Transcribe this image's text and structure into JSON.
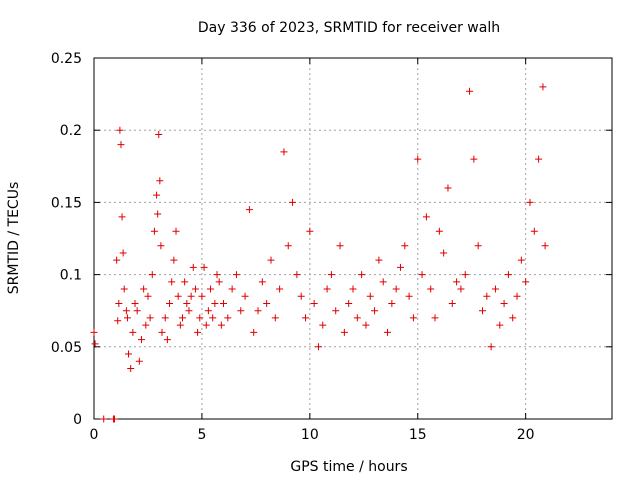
{
  "chart_data": {
    "type": "scatter",
    "title": "Day 336 of 2023, SRMTID for receiver walh",
    "xlabel": "GPS time / hours",
    "ylabel": "SRMTID / TECUs",
    "xlim": [
      0,
      24
    ],
    "ylim": [
      0,
      0.25
    ],
    "x_ticks": [
      0,
      5,
      10,
      15,
      20
    ],
    "y_ticks": [
      0,
      0.05,
      0.1,
      0.15,
      0.2,
      0.25
    ],
    "x_tick_labels": [
      "0",
      "5",
      "10",
      "15",
      "20"
    ],
    "y_tick_labels": [
      "0",
      "0.05",
      "0.1",
      "0.15",
      "0.2",
      "0.25"
    ],
    "grid": true,
    "marker": "+",
    "series": [
      {
        "name": "SRMTID",
        "color": "#e00000",
        "x": [
          0.0,
          0.05,
          0.45,
          0.9,
          0.95,
          1.05,
          1.1,
          1.15,
          1.2,
          1.25,
          1.3,
          1.35,
          1.4,
          1.5,
          1.55,
          1.6,
          1.7,
          1.8,
          1.9,
          2.0,
          2.1,
          2.2,
          2.3,
          2.4,
          2.5,
          2.6,
          2.7,
          2.8,
          2.9,
          2.95,
          3.0,
          3.05,
          3.1,
          3.15,
          3.3,
          3.4,
          3.5,
          3.6,
          3.7,
          3.8,
          3.9,
          4.0,
          4.1,
          4.2,
          4.3,
          4.4,
          4.5,
          4.6,
          4.7,
          4.8,
          4.9,
          5.0,
          5.1,
          5.2,
          5.3,
          5.4,
          5.5,
          5.6,
          5.7,
          5.8,
          5.9,
          6.0,
          6.2,
          6.4,
          6.6,
          6.8,
          7.0,
          7.2,
          7.4,
          7.6,
          7.8,
          8.0,
          8.2,
          8.4,
          8.6,
          8.8,
          9.0,
          9.2,
          9.4,
          9.6,
          9.8,
          10.0,
          10.2,
          10.4,
          10.6,
          10.8,
          11.0,
          11.2,
          11.4,
          11.6,
          11.8,
          12.0,
          12.2,
          12.4,
          12.6,
          12.8,
          13.0,
          13.2,
          13.4,
          13.6,
          13.8,
          14.0,
          14.2,
          14.4,
          14.6,
          14.8,
          15.0,
          15.2,
          15.4,
          15.6,
          15.8,
          16.0,
          16.2,
          16.4,
          16.6,
          16.8,
          17.0,
          17.2,
          17.4,
          17.6,
          17.8,
          18.0,
          18.2,
          18.4,
          18.6,
          18.8,
          19.0,
          19.2,
          19.4,
          19.6,
          19.8,
          20.0,
          20.2,
          20.4,
          20.6,
          20.8,
          20.9
        ],
        "y": [
          0.06,
          0.052,
          0.0,
          0.0,
          0.0,
          0.11,
          0.068,
          0.08,
          0.2,
          0.19,
          0.14,
          0.115,
          0.09,
          0.075,
          0.07,
          0.045,
          0.035,
          0.06,
          0.08,
          0.075,
          0.04,
          0.055,
          0.09,
          0.065,
          0.085,
          0.07,
          0.1,
          0.13,
          0.155,
          0.142,
          0.197,
          0.165,
          0.12,
          0.06,
          0.07,
          0.055,
          0.08,
          0.095,
          0.11,
          0.13,
          0.085,
          0.065,
          0.07,
          0.095,
          0.08,
          0.075,
          0.085,
          0.105,
          0.09,
          0.06,
          0.07,
          0.085,
          0.105,
          0.065,
          0.075,
          0.09,
          0.07,
          0.08,
          0.1,
          0.095,
          0.065,
          0.08,
          0.07,
          0.09,
          0.1,
          0.075,
          0.085,
          0.145,
          0.06,
          0.075,
          0.095,
          0.08,
          0.11,
          0.07,
          0.09,
          0.185,
          0.12,
          0.15,
          0.1,
          0.085,
          0.07,
          0.13,
          0.08,
          0.05,
          0.065,
          0.09,
          0.1,
          0.075,
          0.12,
          0.06,
          0.08,
          0.09,
          0.07,
          0.1,
          0.065,
          0.085,
          0.075,
          0.11,
          0.095,
          0.06,
          0.08,
          0.09,
          0.105,
          0.12,
          0.085,
          0.07,
          0.18,
          0.1,
          0.14,
          0.09,
          0.07,
          0.13,
          0.115,
          0.16,
          0.08,
          0.095,
          0.09,
          0.1,
          0.227,
          0.18,
          0.12,
          0.075,
          0.085,
          0.05,
          0.09,
          0.065,
          0.08,
          0.1,
          0.07,
          0.085,
          0.11,
          0.095,
          0.15,
          0.13,
          0.18,
          0.23,
          0.12
        ]
      }
    ]
  }
}
